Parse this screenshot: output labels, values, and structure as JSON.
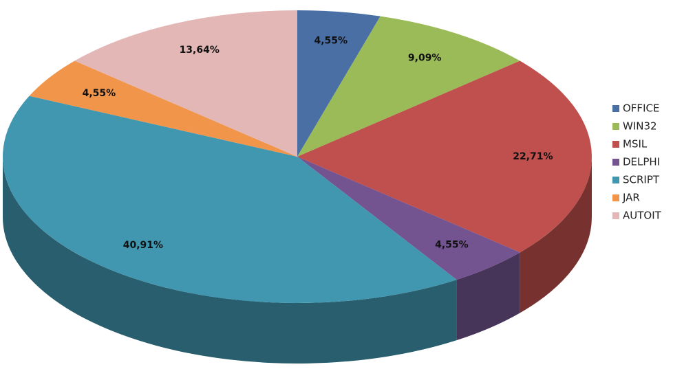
{
  "chart_data": {
    "type": "pie",
    "categories": [
      "OFFICE",
      "WIN32",
      "MSIL",
      "DELPHI",
      "SCRIPT",
      "JAR",
      "AUTOIT"
    ],
    "values": [
      4.55,
      9.09,
      22.71,
      4.55,
      40.91,
      4.55,
      13.64
    ],
    "value_labels": [
      "4,55%",
      "9,09%",
      "22,71%",
      "4,55%",
      "40,91%",
      "4,55%",
      "13,64%"
    ],
    "colors": [
      "#4a6fa5",
      "#9bbb59",
      "#c0504d",
      "#735490",
      "#4197b0",
      "#f0954a",
      "#e3b7b6"
    ],
    "legend": "right"
  }
}
